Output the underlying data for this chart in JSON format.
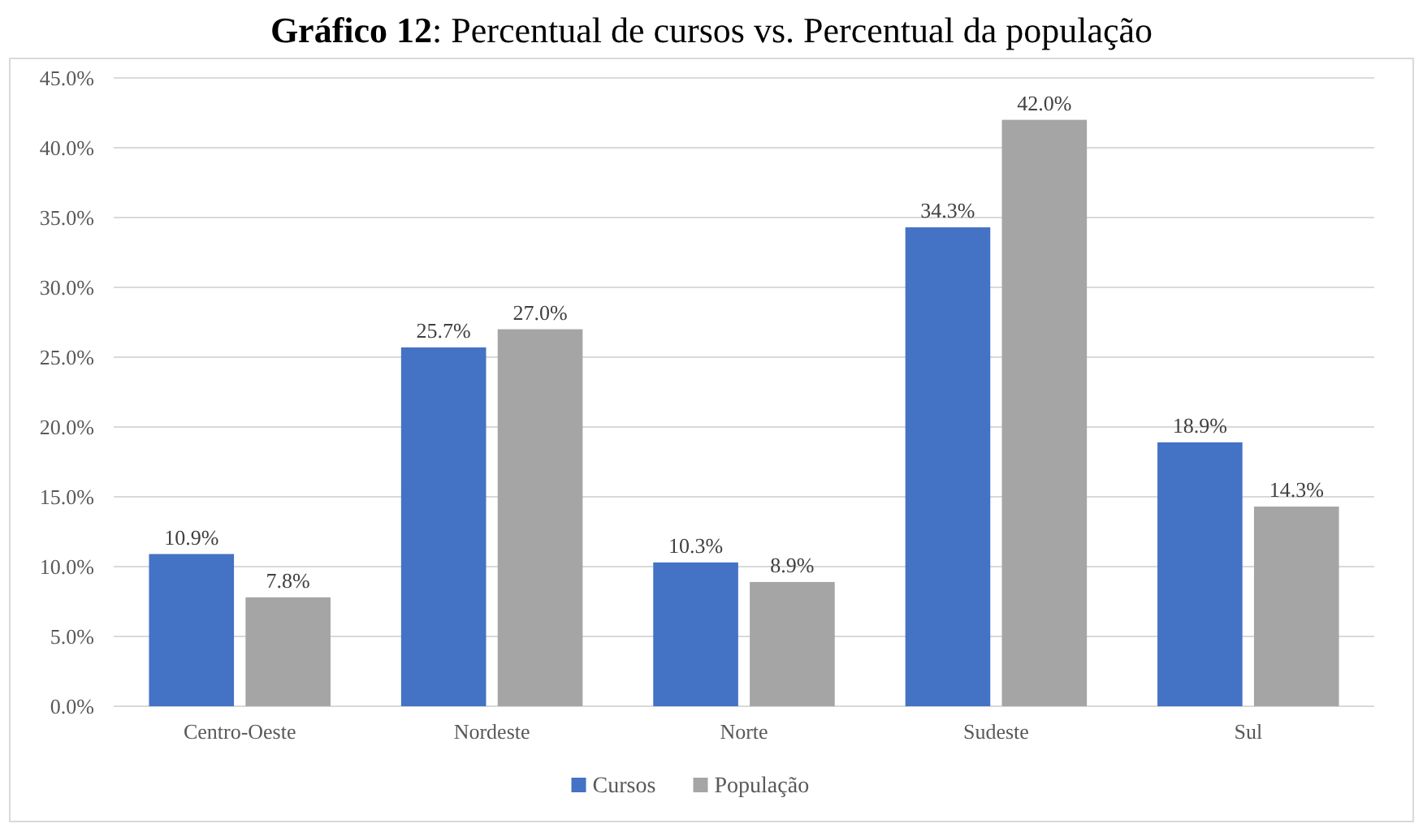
{
  "chart_data": {
    "type": "bar",
    "title": "Gráfico 12: Percentual de cursos vs. Percentual da população",
    "categories": [
      "Centro-Oeste",
      "Nordeste",
      "Norte",
      "Sudeste",
      "Sul"
    ],
    "series": [
      {
        "name": "Cursos",
        "color": "#4472c4",
        "values": [
          10.9,
          25.7,
          10.3,
          34.3,
          18.9
        ],
        "value_labels": [
          "10.9%",
          "25.7%",
          "10.3%",
          "34.3%",
          "18.9%"
        ]
      },
      {
        "name": "População",
        "color": "#a5a5a5",
        "values": [
          7.8,
          27.0,
          8.9,
          42.0,
          14.3
        ],
        "value_labels": [
          "7.8%",
          "27.0%",
          "8.9%",
          "42.0%",
          "14.3%"
        ]
      }
    ],
    "ylim": [
      0,
      45
    ],
    "yticks": [
      {
        "value": 0,
        "label": "0.0%"
      },
      {
        "value": 5,
        "label": "5.0%"
      },
      {
        "value": 10,
        "label": "10.0%"
      },
      {
        "value": 15,
        "label": "15.0%"
      },
      {
        "value": 20,
        "label": "20.0%"
      },
      {
        "value": 25,
        "label": "25.0%"
      },
      {
        "value": 30,
        "label": "30.0%"
      },
      {
        "value": 35,
        "label": "35.0%"
      },
      {
        "value": 40,
        "label": "40.0%"
      },
      {
        "value": 45,
        "label": "45.0%"
      }
    ],
    "grid": "y",
    "legend": "bottom"
  }
}
